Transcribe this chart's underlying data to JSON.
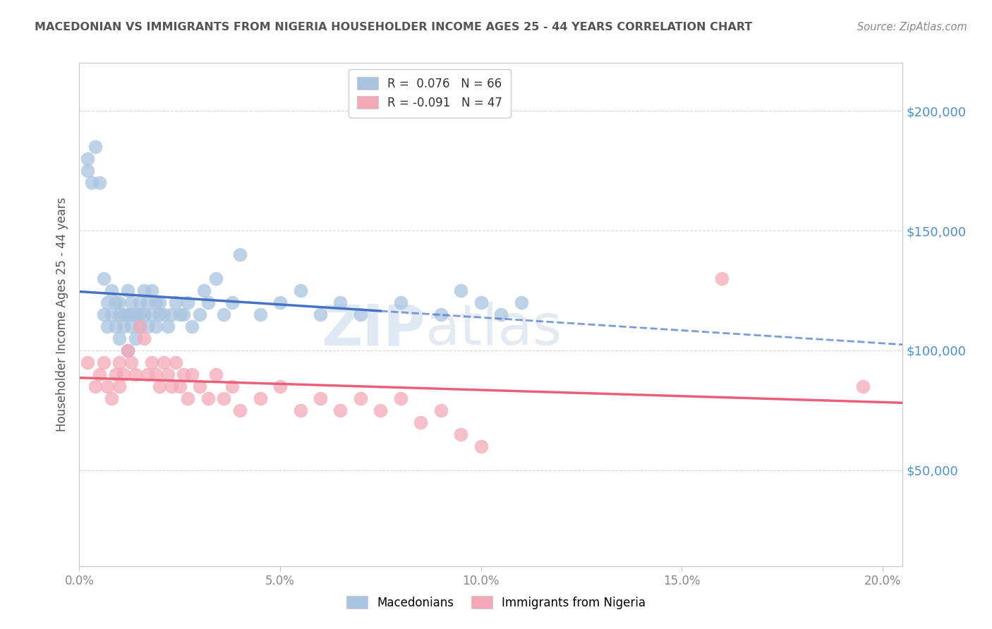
{
  "title": "MACEDONIAN VS IMMIGRANTS FROM NIGERIA HOUSEHOLDER INCOME AGES 25 - 44 YEARS CORRELATION CHART",
  "source": "Source: ZipAtlas.com",
  "ylabel": "Householder Income Ages 25 - 44 years",
  "xlim": [
    0.0,
    0.205
  ],
  "ylim": [
    10000,
    220000
  ],
  "yticks": [
    50000,
    100000,
    150000,
    200000
  ],
  "ytick_labels": [
    "$50,000",
    "$100,000",
    "$150,000",
    "$200,000"
  ],
  "xticks": [
    0.0,
    0.05,
    0.1,
    0.15,
    0.2
  ],
  "xtick_labels": [
    "0.0%",
    "5.0%",
    "10.0%",
    "15.0%",
    "20.0%"
  ],
  "blue_R": 0.076,
  "blue_N": 66,
  "pink_R": -0.091,
  "pink_N": 47,
  "blue_color": "#a8c4e0",
  "pink_color": "#f4a8b8",
  "blue_line_color": "#4472c4",
  "pink_line_color": "#e8607a",
  "background_color": "#ffffff",
  "grid_color": "#cccccc",
  "title_color": "#555555",
  "axis_label_color": "#555555",
  "tick_label_color": "#888888",
  "right_ytick_color": "#4a90d9",
  "watermark": "ZIPatlas",
  "blue_scatter_x": [
    0.002,
    0.002,
    0.003,
    0.004,
    0.005,
    0.006,
    0.006,
    0.007,
    0.007,
    0.008,
    0.008,
    0.009,
    0.009,
    0.01,
    0.01,
    0.01,
    0.011,
    0.011,
    0.012,
    0.012,
    0.012,
    0.013,
    0.013,
    0.013,
    0.014,
    0.014,
    0.015,
    0.015,
    0.015,
    0.016,
    0.016,
    0.017,
    0.017,
    0.018,
    0.018,
    0.019,
    0.019,
    0.02,
    0.02,
    0.021,
    0.022,
    0.023,
    0.024,
    0.025,
    0.026,
    0.027,
    0.028,
    0.03,
    0.031,
    0.032,
    0.034,
    0.036,
    0.038,
    0.04,
    0.045,
    0.05,
    0.055,
    0.06,
    0.065,
    0.07,
    0.08,
    0.09,
    0.095,
    0.1,
    0.105,
    0.11
  ],
  "blue_scatter_y": [
    175000,
    180000,
    170000,
    185000,
    170000,
    115000,
    130000,
    120000,
    110000,
    115000,
    125000,
    110000,
    120000,
    115000,
    105000,
    120000,
    110000,
    115000,
    100000,
    115000,
    125000,
    110000,
    120000,
    115000,
    105000,
    115000,
    120000,
    110000,
    115000,
    115000,
    125000,
    110000,
    120000,
    115000,
    125000,
    110000,
    120000,
    115000,
    120000,
    115000,
    110000,
    115000,
    120000,
    115000,
    115000,
    120000,
    110000,
    115000,
    125000,
    120000,
    130000,
    115000,
    120000,
    140000,
    115000,
    120000,
    125000,
    115000,
    120000,
    115000,
    120000,
    115000,
    125000,
    120000,
    115000,
    120000
  ],
  "pink_scatter_x": [
    0.002,
    0.004,
    0.005,
    0.006,
    0.007,
    0.008,
    0.009,
    0.01,
    0.01,
    0.011,
    0.012,
    0.013,
    0.014,
    0.015,
    0.016,
    0.017,
    0.018,
    0.019,
    0.02,
    0.021,
    0.022,
    0.023,
    0.024,
    0.025,
    0.026,
    0.027,
    0.028,
    0.03,
    0.032,
    0.034,
    0.036,
    0.038,
    0.04,
    0.045,
    0.05,
    0.055,
    0.06,
    0.065,
    0.07,
    0.075,
    0.08,
    0.085,
    0.09,
    0.095,
    0.1,
    0.16,
    0.195
  ],
  "pink_scatter_y": [
    95000,
    85000,
    90000,
    95000,
    85000,
    80000,
    90000,
    85000,
    95000,
    90000,
    100000,
    95000,
    90000,
    110000,
    105000,
    90000,
    95000,
    90000,
    85000,
    95000,
    90000,
    85000,
    95000,
    85000,
    90000,
    80000,
    90000,
    85000,
    80000,
    90000,
    80000,
    85000,
    75000,
    80000,
    85000,
    75000,
    80000,
    75000,
    80000,
    75000,
    80000,
    70000,
    75000,
    65000,
    60000,
    130000,
    85000
  ]
}
